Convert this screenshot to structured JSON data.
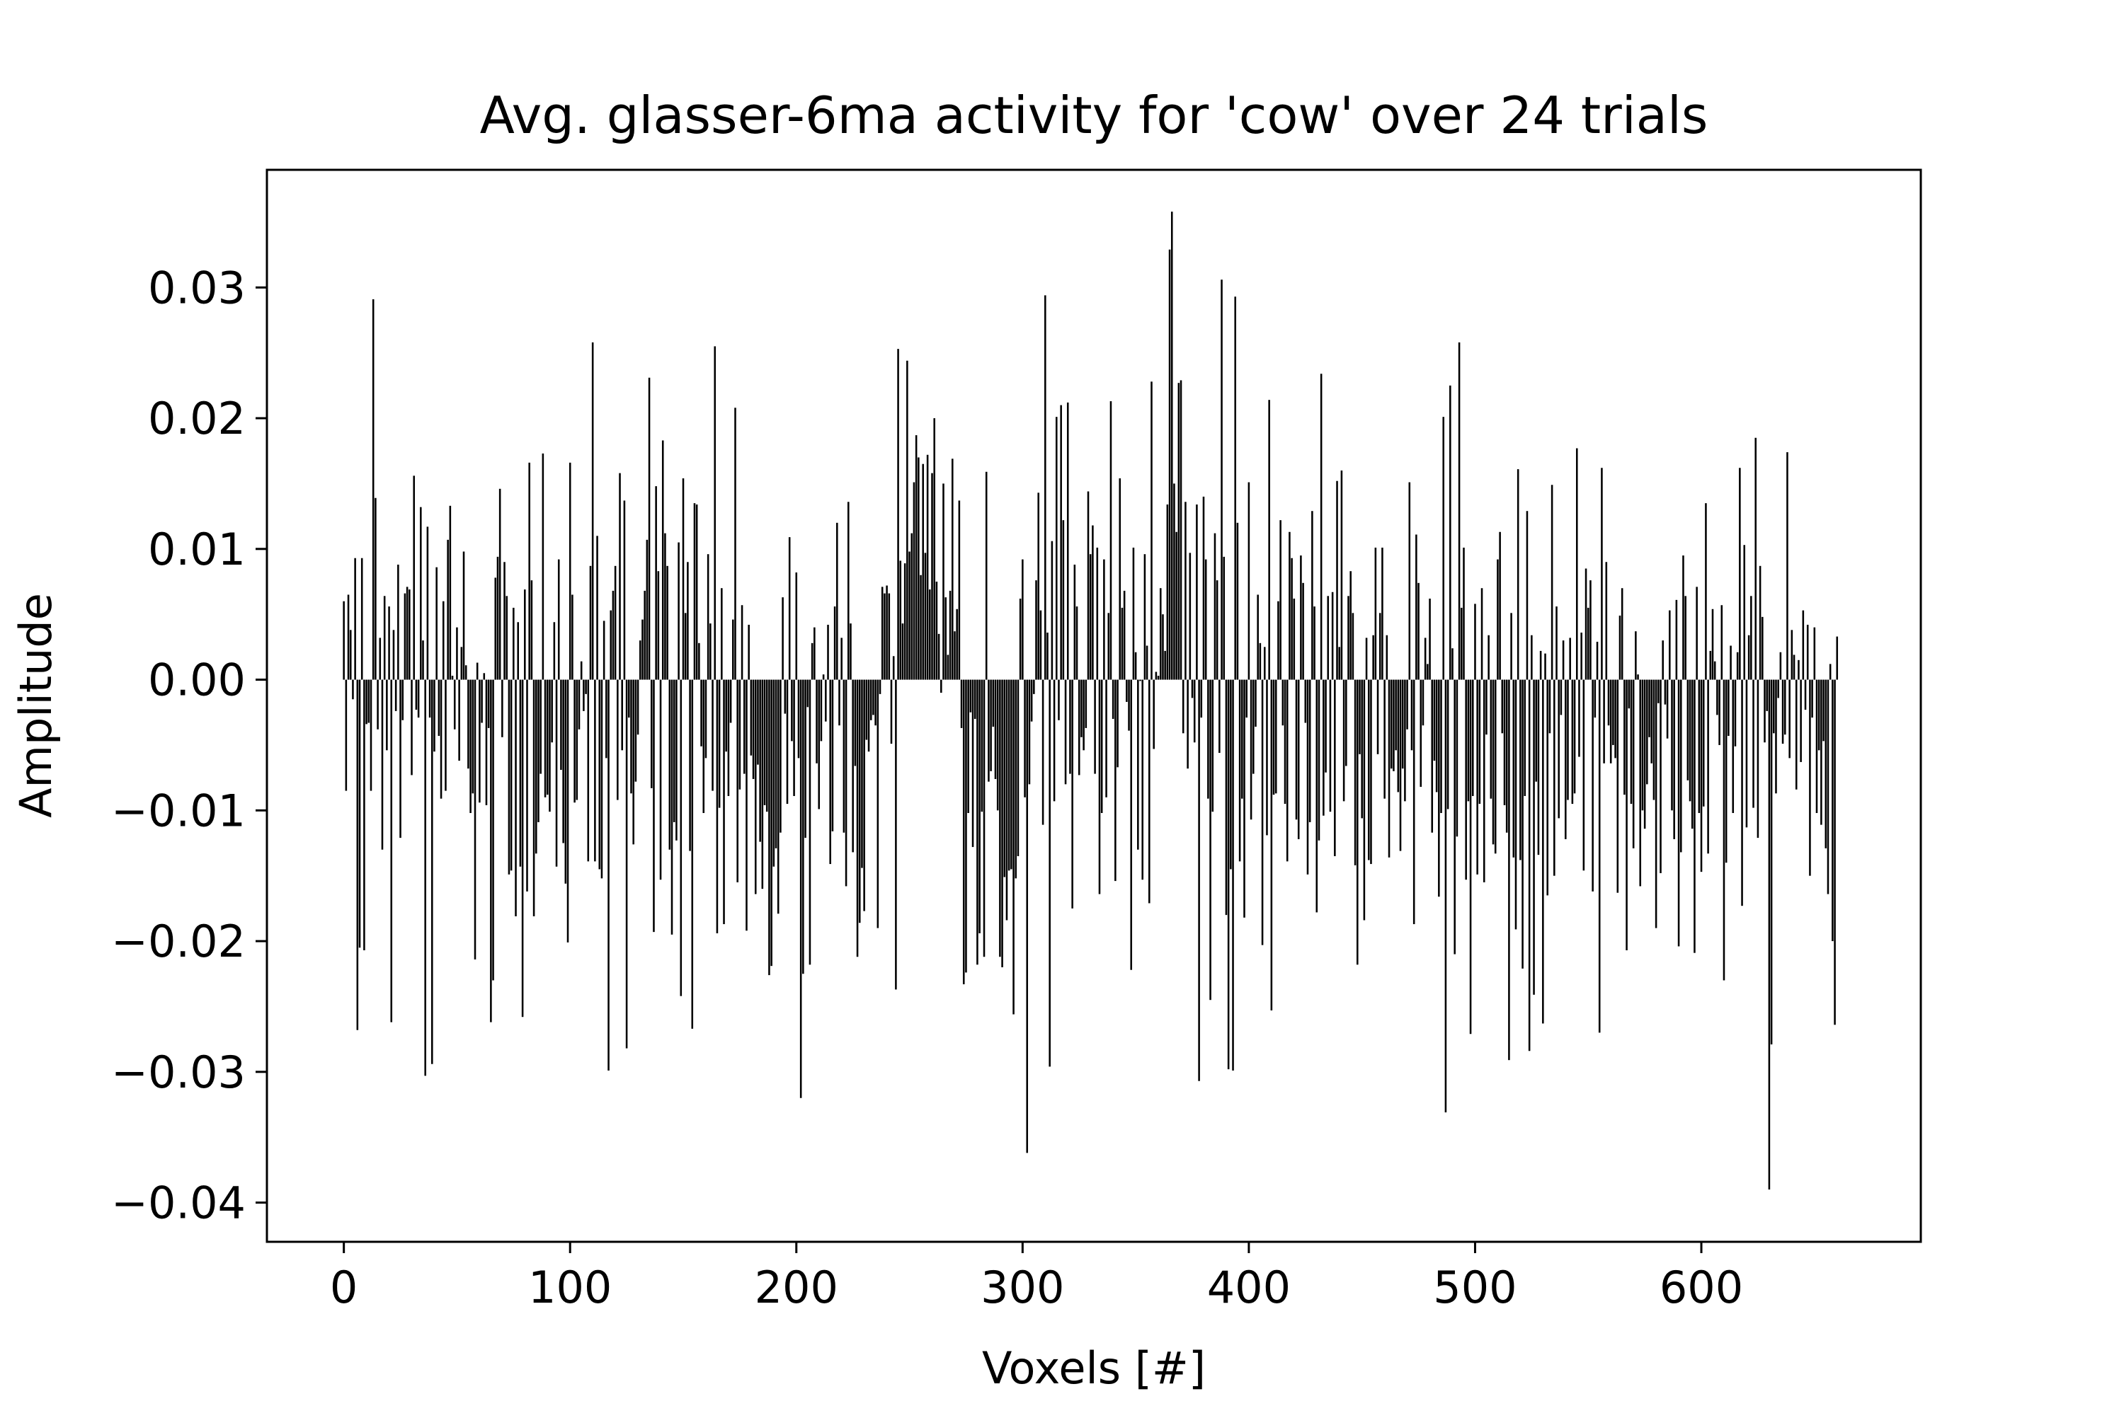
{
  "chart_data": {
    "type": "bar",
    "title": "Avg. glasser-6ma activity for 'cow' over 24 trials",
    "xlabel": "Voxels [#]",
    "ylabel": "Amplitude",
    "xlim": [
      -34,
      697
    ],
    "ylim": [
      -0.043,
      0.039
    ],
    "xticks": [
      0,
      100,
      200,
      300,
      400,
      500,
      600
    ],
    "yticks": [
      -0.04,
      -0.03,
      -0.02,
      -0.01,
      0.0,
      0.01,
      0.02,
      0.03
    ],
    "ytick_labels": [
      "−0.04",
      "−0.03",
      "−0.02",
      "−0.01",
      "0.00",
      "0.01",
      "0.02",
      "0.03"
    ],
    "grid": false,
    "legend": "none",
    "bar_color": "#000000",
    "n_voxels": 663,
    "notable_values": [
      {
        "x": 13,
        "y": 0.029
      },
      {
        "x": 35,
        "y": -0.03
      },
      {
        "x": 110,
        "y": 0.026
      },
      {
        "x": 165,
        "y": 0.025
      },
      {
        "x": 202,
        "y": -0.032
      },
      {
        "x": 302,
        "y": -0.036
      },
      {
        "x": 368,
        "y": 0.036
      },
      {
        "x": 394,
        "y": 0.031
      },
      {
        "x": 491,
        "y": -0.033
      },
      {
        "x": 495,
        "y": 0.026
      },
      {
        "x": 638,
        "y": -0.039
      }
    ],
    "values": [
      0.006,
      -0.0085,
      0.0065,
      0.0038,
      -0.0015,
      0.0093,
      -0.0268,
      -0.0205,
      0.0093,
      -0.0207,
      -0.0034,
      -0.0033,
      -0.0085,
      0.0291,
      0.0139,
      -0.0038,
      0.0032,
      -0.013,
      0.0064,
      -0.0054,
      0.0056,
      -0.0262,
      0.0038,
      -0.0024,
      0.0088,
      -0.0121,
      -0.0031,
      0.0066,
      0.0071,
      0.0069,
      -0.0073,
      0.0156,
      -0.0023,
      -0.0029,
      0.0132,
      0.003,
      -0.0303,
      0.0117,
      -0.0029,
      -0.0294,
      -0.0055,
      0.0086,
      -0.0043,
      -0.0091,
      0.006,
      -0.0085,
      0.0107,
      0.0133,
      0.0003,
      -0.0038,
      0.004,
      -0.0062,
      0.0025,
      0.0098,
      0.0011,
      -0.0068,
      -0.0102,
      -0.0087,
      -0.0214,
      0.0013,
      -0.0094,
      -0.0033,
      0.0005,
      -0.0096,
      -0.0037,
      -0.0262,
      -0.023,
      0.0078,
      0.0094,
      0.0146,
      -0.0044,
      0.009,
      0.0064,
      -0.0149,
      -0.0146,
      0.0055,
      -0.0181,
      0.0044,
      -0.0143,
      -0.0258,
      0.0069,
      -0.0162,
      0.0166,
      0.0076,
      -0.0181,
      -0.0133,
      -0.0109,
      -0.0072,
      0.0173,
      -0.009,
      -0.0088,
      -0.0101,
      -0.0048,
      0.0044,
      -0.0143,
      0.0092,
      -0.0069,
      -0.0125,
      -0.0156,
      -0.0201,
      0.0166,
      0.0065,
      -0.0094,
      -0.0092,
      -0.0038,
      0.0014,
      -0.0024,
      -0.0011,
      -0.0139,
      0.0087,
      0.0258,
      -0.0139,
      0.011,
      -0.0145,
      -0.0152,
      0.0045,
      -0.006,
      -0.0299,
      0.0053,
      0.0068,
      0.0087,
      -0.0092,
      0.0158,
      -0.0054,
      0.0137,
      -0.0282,
      -0.0029,
      -0.0087,
      -0.0126,
      -0.0078,
      -0.0042,
      0.003,
      0.0046,
      0.0068,
      0.0107,
      0.0231,
      -0.0083,
      -0.0193,
      0.0148,
      0.0083,
      -0.0153,
      0.0183,
      0.0112,
      0.0087,
      -0.013,
      -0.0195,
      -0.0109,
      -0.0123,
      0.0105,
      -0.0242,
      0.0154,
      0.0051,
      0.009,
      -0.0131,
      -0.0267,
      0.0135,
      0.0134,
      0.0028,
      -0.0051,
      -0.0102,
      -0.006,
      0.0096,
      0.0043,
      -0.0085,
      0.0255,
      -0.0194,
      -0.0098,
      0.007,
      -0.0187,
      -0.0055,
      -0.0089,
      -0.0033,
      0.0046,
      0.0208,
      -0.0155,
      -0.0084,
      0.0057,
      -0.0072,
      -0.0192,
      0.0042,
      -0.0058,
      -0.0076,
      -0.0164,
      -0.0065,
      -0.0124,
      -0.016,
      -0.0096,
      -0.0101,
      -0.0226,
      -0.0219,
      -0.0143,
      -0.0129,
      -0.0179,
      -0.0117,
      0.0063,
      -0.0026,
      -0.0095,
      0.0109,
      -0.0047,
      -0.0089,
      0.0082,
      -0.006,
      -0.032,
      -0.0225,
      -0.0121,
      -0.0021,
      -0.0218,
      0.0028,
      0.004,
      -0.0064,
      -0.0099,
      -0.0047,
      0.0004,
      -0.0032,
      0.0042,
      -0.0141,
      -0.0116,
      0.0056,
      0.012,
      -0.0035,
      0.0032,
      -0.0117,
      -0.0158,
      0.0136,
      0.0043,
      -0.0132,
      -0.0066,
      -0.0212,
      -0.0186,
      -0.0144,
      -0.0177,
      -0.0046,
      -0.0055,
      -0.0031,
      -0.0027,
      -0.0035,
      -0.019,
      -0.0011,
      0.0071,
      0.0066,
      0.0072,
      0.0066,
      -0.0049,
      0.0018,
      -0.0237,
      0.0253,
      0.0091,
      0.0043,
      0.0089,
      0.0244,
      0.0098,
      0.0112,
      0.0151,
      0.0187,
      0.017,
      0.008,
      0.0165,
      0.0097,
      0.0172,
      0.0069,
      0.0158,
      0.02,
      0.0075,
      0.0035,
      -0.001,
      0.015,
      0.0063,
      0.0019,
      0.0068,
      0.0169,
      0.0037,
      0.0054,
      0.0137,
      -0.0037,
      -0.0233,
      -0.0224,
      -0.0102,
      -0.0025,
      -0.0128,
      -0.003,
      -0.0218,
      -0.0194,
      -0.0101,
      -0.0212,
      0.0159,
      -0.0078,
      -0.007,
      -0.0036,
      -0.0076,
      -0.01,
      -0.0212,
      -0.022,
      -0.0151,
      -0.0184,
      -0.0146,
      -0.0145,
      -0.0256,
      -0.0152,
      -0.0135,
      0.0062,
      0.0092,
      -0.009,
      -0.0362,
      -0.008,
      -0.0032,
      -0.0011,
      0.0076,
      0.0143,
      0.0053,
      -0.0111,
      0.0294,
      0.0036,
      -0.0296,
      0.0106,
      -0.0093,
      0.0201,
      -0.0031,
      0.021,
      0.0122,
      -0.008,
      0.0212,
      -0.0072,
      -0.0175,
      0.0088,
      0.0056,
      -0.0073,
      -0.0044,
      -0.0054,
      -0.0037,
      0.0144,
      0.0096,
      0.0118,
      -0.0072,
      0.0101,
      -0.0164,
      -0.0102,
      0.0092,
      -0.009,
      0.0051,
      0.0213,
      -0.003,
      -0.0154,
      -0.0067,
      0.0154,
      0.0055,
      0.0068,
      -0.0017,
      -0.0039,
      -0.0222,
      0.0101,
      0.0021,
      -0.013,
      -0.0001,
      -0.0153,
      0.0096,
      0.0026,
      -0.0171,
      0.0228,
      -0.0053,
      0.0006,
      0.0003,
      0.007,
      0.005,
      0.0022,
      0.0134,
      0.0329,
      0.0358,
      0.015,
      0.0113,
      0.0227,
      0.0229,
      -0.0041,
      0.0136,
      -0.0068,
      0.0097,
      -0.0014,
      -0.0048,
      0.0134,
      -0.0307,
      -0.0029,
      0.014,
      0.0092,
      -0.0091,
      -0.0245,
      -0.0101,
      0.0112,
      0.0076,
      -0.0056,
      0.0306,
      0.0094,
      -0.018,
      -0.0298,
      -0.0145,
      -0.0299,
      0.0293,
      0.012,
      -0.0139,
      -0.0091,
      -0.0182,
      -0.0029,
      0.0151,
      -0.0107,
      -0.0072,
      -0.0036,
      0.0065,
      0.0028,
      -0.0203,
      0.0025,
      -0.0119,
      0.0214,
      -0.0253,
      -0.0088,
      -0.0087,
      0.006,
      0.0122,
      -0.0035,
      -0.0095,
      -0.0139,
      0.0113,
      0.0093,
      0.0062,
      -0.0107,
      -0.0122,
      0.0095,
      0.0074,
      -0.0033,
      -0.0149,
      -0.0109,
      0.0129,
      0.0056,
      -0.0178,
      -0.0123,
      0.0234,
      -0.0104,
      -0.0071,
      0.0064,
      -0.0101,
      0.0067,
      -0.0135,
      0.0152,
      0.0025,
      0.016,
      -0.0093,
      -0.0066,
      0.0064,
      0.0083,
      0.0051,
      -0.0142,
      -0.0218,
      -0.0057,
      -0.0106,
      -0.0184,
      0.0032,
      -0.0138,
      -0.0141,
      0.0034,
      0.0101,
      -0.0057,
      0.0051,
      0.0101,
      -0.0091,
      0.0034,
      -0.0136,
      -0.0068,
      -0.007,
      -0.0054,
      -0.0086,
      -0.0131,
      -0.0068,
      -0.0093,
      -0.0038,
      0.0151,
      -0.0054,
      -0.0187,
      0.0111,
      0.0074,
      -0.0082,
      -0.0035,
      0.0032,
      0.0012,
      0.0062,
      -0.0117,
      -0.0062,
      -0.0086,
      -0.0166,
      -0.0102,
      0.0201,
      -0.0331,
      -0.0099,
      0.0225,
      0.0024,
      -0.021,
      -0.012,
      0.0258,
      0.0055,
      0.0101,
      -0.0153,
      -0.0093,
      -0.0271,
      -0.0089,
      0.0058,
      -0.0149,
      -0.0095,
      0.007,
      -0.0155,
      -0.0042,
      0.0034,
      -0.0091,
      -0.0126,
      -0.0133,
      0.0092,
      0.0113,
      -0.0041,
      -0.0096,
      -0.0117,
      -0.0291,
      0.0051,
      -0.0136,
      -0.0191,
      0.0161,
      -0.0138,
      -0.0221,
      -0.0089,
      0.0129,
      -0.0284,
      0.0034,
      -0.0241,
      -0.0078,
      -0.0134,
      0.0022,
      -0.0263,
      0.002,
      -0.0165,
      -0.0041,
      0.0149,
      -0.015,
      0.0056,
      -0.0106,
      -0.0027,
      0.003,
      -0.0122,
      -0.0092,
      0.0032,
      -0.0095,
      -0.0087,
      0.0177,
      -0.0059,
      0.0036,
      -0.0146,
      0.0085,
      0.0055,
      0.0076,
      -0.0162,
      -0.0029,
      0.0029,
      -0.027,
      0.0162,
      -0.0064,
      0.009,
      -0.0035,
      -0.0064,
      -0.005,
      -0.006,
      -0.0163,
      0.0049,
      0.007,
      -0.0088,
      -0.0207,
      -0.0022,
      -0.0095,
      -0.0129,
      0.0037,
      0.0004,
      -0.0158,
      -0.01,
      -0.0114,
      -0.008,
      -0.0044,
      -0.0064,
      -0.0092,
      -0.019,
      -0.0018,
      -0.0148,
      0.003,
      -0.0019,
      -0.0045,
      0.0053,
      -0.01,
      -0.0122,
      0.0061,
      -0.0204,
      -0.0132,
      0.0095,
      0.0064,
      -0.0077,
      -0.0093,
      -0.0114,
      -0.0209,
      0.0071,
      -0.0102,
      -0.0147,
      -0.0097,
      0.0135,
      -0.0133,
      0.0022,
      0.0054,
      0.0014,
      -0.0027,
      -0.005,
      0.0057,
      -0.023,
      -0.014,
      -0.0043,
      0.0026,
      -0.0102,
      -0.0051,
      0.0021,
      0.0162,
      -0.0173,
      0.0103,
      -0.0113,
      0.0034,
      0.0064,
      -0.0098,
      0.0185,
      -0.0121,
      0.0087,
      0.0048,
      -0.0048,
      -0.0024,
      -0.039,
      -0.0279,
      -0.0041,
      -0.0087,
      -0.0014,
      0.0021,
      -0.0049,
      -0.0042,
      0.0174,
      -0.006,
      0.0038,
      0.0019,
      -0.0084,
      0.0015,
      -0.0063,
      0.0053,
      -0.0023,
      0.0042,
      -0.015,
      -0.0029,
      0.004,
      -0.0102,
      -0.0054,
      -0.0111,
      -0.0047,
      -0.0129,
      -0.0164,
      0.0012,
      -0.02,
      -0.0264,
      0.0033
    ]
  }
}
